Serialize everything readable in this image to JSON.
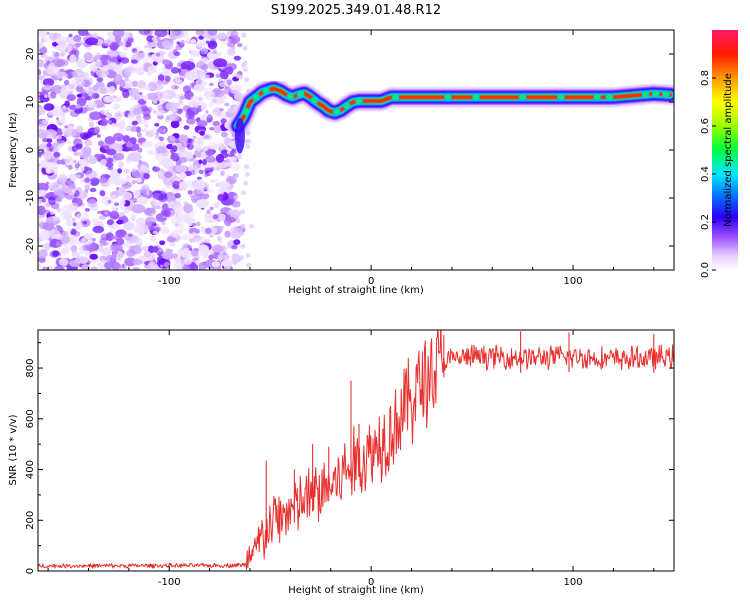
{
  "title": "S199.2025.349.01.48.R12",
  "chart_data": [
    {
      "type": "heatmap",
      "xlabel": "Height of straight line (km)",
      "ylabel": "Frequency (Hz)",
      "xlim": [
        -165,
        150
      ],
      "ylim": [
        -25,
        25
      ],
      "xticks": [
        -100,
        0,
        100
      ],
      "yticks": [
        -20,
        -10,
        0,
        10,
        20
      ],
      "noise_region_x": [
        -165,
        -67
      ],
      "ridge": {
        "x": [
          -66,
          -63,
          -60,
          -57,
          -54,
          -51,
          -48,
          -45,
          -42,
          -39,
          -36,
          -33,
          -30,
          -27,
          -24,
          -21,
          -18,
          -15,
          -12,
          -9,
          -6,
          -3,
          0,
          5,
          10,
          15,
          30,
          60,
          90,
          120,
          140,
          148
        ],
        "freq": [
          5,
          7,
          10,
          11,
          12,
          12.5,
          12.8,
          12.3,
          11.5,
          11,
          11.5,
          11.8,
          11,
          10,
          9.2,
          8.2,
          7.8,
          8.3,
          9.2,
          10,
          10.2,
          10.2,
          10.2,
          10.2,
          11,
          11,
          11,
          11,
          11,
          11,
          11.7,
          11.5
        ]
      },
      "colorbar": {
        "label": "Normalized spectral amplitude",
        "ticks": [
          0.0,
          0.2,
          0.4,
          0.6,
          0.8
        ],
        "range": [
          0,
          1
        ]
      }
    },
    {
      "type": "line",
      "xlabel": "Height of straight line (km)",
      "ylabel": "SNR (10 * v/v)",
      "xlim": [
        -165,
        150
      ],
      "ylim": [
        0,
        950
      ],
      "xticks": [
        -100,
        0,
        100
      ],
      "yticks": [
        0,
        200,
        400,
        600,
        800
      ],
      "color": "#e8312f",
      "trend": {
        "x": [
          -165,
          -70,
          -62,
          -58,
          -55,
          -52,
          -48,
          -44,
          -40,
          -36,
          -32,
          -28,
          -24,
          -20,
          -16,
          -12,
          -8,
          -4,
          0,
          5,
          10,
          15,
          20,
          25,
          30,
          35,
          40,
          50,
          60,
          80,
          100,
          120,
          140,
          150
        ],
        "y": [
          20,
          22,
          25,
          60,
          120,
          150,
          200,
          220,
          240,
          260,
          280,
          300,
          320,
          340,
          360,
          400,
          420,
          440,
          470,
          520,
          560,
          620,
          680,
          740,
          790,
          820,
          835,
          845,
          845,
          840,
          845,
          835,
          840,
          845
        ]
      },
      "spikes": [
        {
          "x": -52,
          "y": 435
        },
        {
          "x": -38,
          "y": 400
        },
        {
          "x": -29,
          "y": 500
        },
        {
          "x": -21,
          "y": 490
        },
        {
          "x": -10,
          "y": 750
        },
        {
          "x": -6,
          "y": 580
        },
        {
          "x": 22,
          "y": 700
        },
        {
          "x": 36,
          "y": 930
        },
        {
          "x": 74,
          "y": 945
        },
        {
          "x": 98,
          "y": 940
        },
        {
          "x": 140,
          "y": 935
        }
      ],
      "noise_amplitude": 60
    }
  ]
}
